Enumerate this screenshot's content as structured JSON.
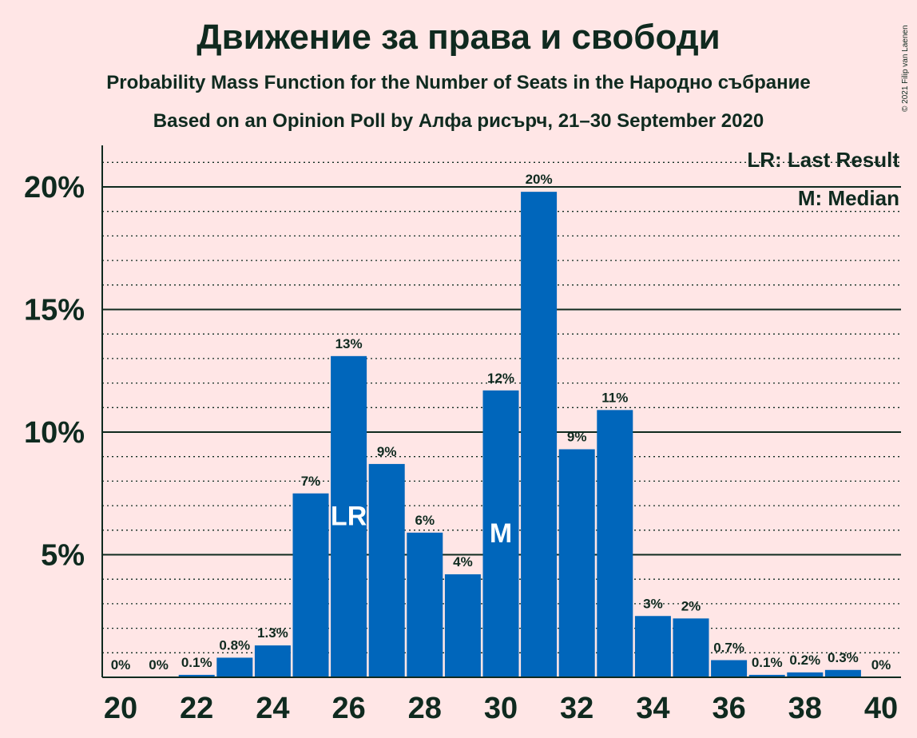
{
  "title": "Движение за права и свободи",
  "subtitle": "Probability Mass Function for the Number of Seats in the Народно събрание",
  "subtitle2": "Based on an Opinion Poll by Алфа рисърч, 21–30 September 2020",
  "copyright": "© 2021 Filip van Laenen",
  "legend": {
    "last_result": "LR: Last Result",
    "median": "M: Median"
  },
  "colors": {
    "background": "#ffe6e6",
    "bar": "#0066bb",
    "text": "#0f2a1f"
  },
  "chart_data": {
    "type": "bar",
    "x": [
      20,
      21,
      22,
      23,
      24,
      25,
      26,
      27,
      28,
      29,
      30,
      31,
      32,
      33,
      34,
      35,
      36,
      37,
      38,
      39,
      40
    ],
    "values": [
      0,
      0,
      0.1,
      0.8,
      1.3,
      7.5,
      13.1,
      8.7,
      5.9,
      4.2,
      11.7,
      19.8,
      9.3,
      10.9,
      2.5,
      2.4,
      0.7,
      0.1,
      0.2,
      0.3,
      0
    ],
    "labels": [
      "0%",
      "0%",
      "0.1%",
      "0.8%",
      "1.3%",
      "7%",
      "13%",
      "9%",
      "6%",
      "4%",
      "12%",
      "20%",
      "9%",
      "11%",
      "3%",
      "2%",
      "0.7%",
      "0.1%",
      "0.2%",
      "0.3%",
      "0%"
    ],
    "xticks": [
      "20",
      "22",
      "24",
      "26",
      "28",
      "30",
      "32",
      "34",
      "36",
      "38",
      "40"
    ],
    "yticks": [
      "5%",
      "10%",
      "15%",
      "20%"
    ],
    "ylim": [
      0,
      21.7
    ],
    "last_result": 26,
    "last_result_label": "LR",
    "median": 30,
    "median_label": "M",
    "legend_position": "top-right",
    "grid": true
  }
}
